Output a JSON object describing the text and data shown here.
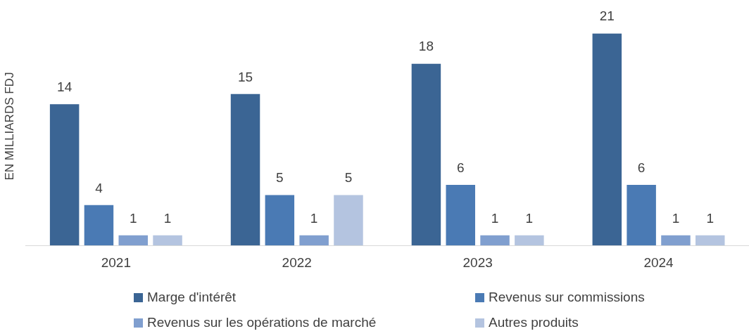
{
  "chart_data": {
    "type": "bar",
    "ylabel": "EN MILLIARDS FDJ",
    "categories": [
      "2021",
      "2022",
      "2023",
      "2024"
    ],
    "series": [
      {
        "name": "Marge d'intérêt",
        "color": "#3b6594",
        "values": [
          14,
          15,
          18,
          21
        ]
      },
      {
        "name": "Revenus sur commissions",
        "color": "#4a7ab4",
        "values": [
          4,
          5,
          6,
          6
        ]
      },
      {
        "name": "Revenus sur les opérations de marché",
        "color": "#809fcf",
        "values": [
          1,
          1,
          1,
          1
        ]
      },
      {
        "name": "Autres produits",
        "color": "#b4c4e0",
        "values": [
          1,
          5,
          1,
          1
        ]
      }
    ],
    "data_labels": true,
    "grid": false,
    "legend": "bottom"
  }
}
